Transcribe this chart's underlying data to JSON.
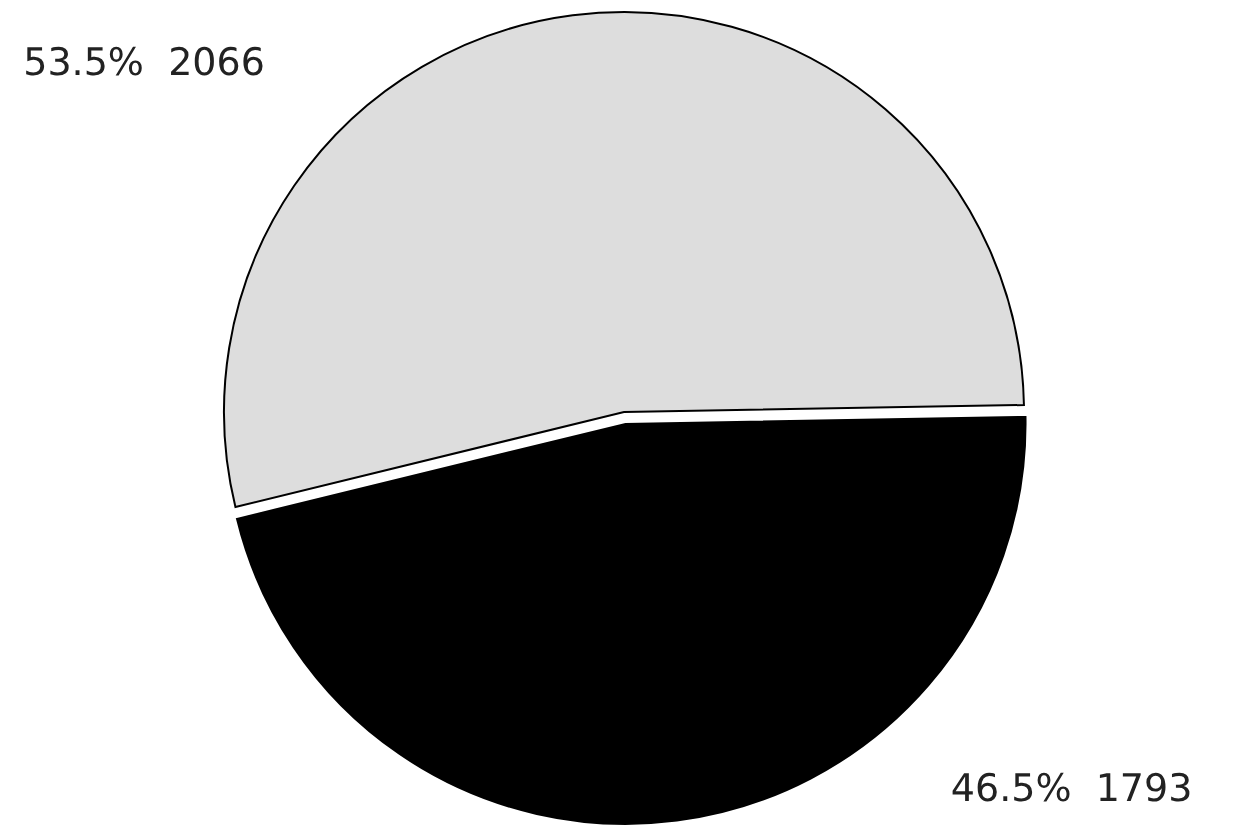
{
  "chart_data": {
    "type": "pie",
    "categories": [
      null,
      null
    ],
    "values": [
      2066,
      1793
    ],
    "colors": [
      "#dddddd",
      "#000000"
    ],
    "value_labels": [
      "53.5%  2066",
      "46.5%  1793"
    ]
  }
}
